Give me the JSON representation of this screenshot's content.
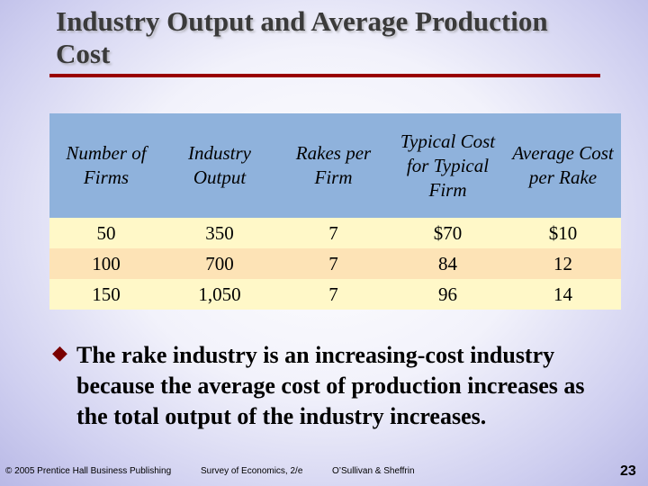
{
  "slide": {
    "title": "Industry Output and Average Production Cost"
  },
  "table": {
    "headers": [
      "Number of Firms",
      "Industry Output",
      "Rakes per Firm",
      "Typical Cost for Typical Firm",
      "Average Cost per Rake"
    ],
    "rows": [
      [
        "50",
        "350",
        "7",
        "$70",
        "$10"
      ],
      [
        "100",
        "700",
        "7",
        "84",
        "12"
      ],
      [
        "150",
        "1,050",
        "7",
        "96",
        "14"
      ]
    ]
  },
  "bullet": {
    "icon": "diamond-bullet-icon",
    "text": "The rake industry is an increasing-cost industry because the average cost of production increases as the total output of the industry increases."
  },
  "footer": {
    "copyright": "© 2005 Prentice Hall Business Publishing",
    "book": "Survey of Economics, 2/e",
    "authors": "O’Sullivan & Sheffrin",
    "page": "23"
  },
  "colors": {
    "title_rule": "#990000",
    "header_bg": "#8fb2dc",
    "row_light": "#fff8c8",
    "row_peach": "#fde3b6"
  }
}
